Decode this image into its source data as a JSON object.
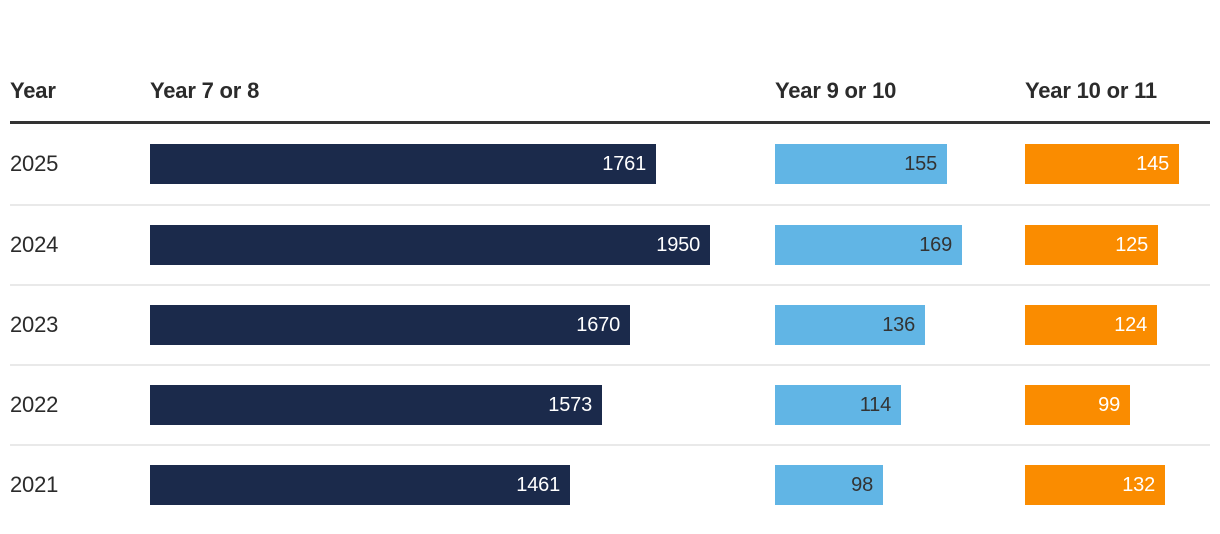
{
  "header": {
    "columns": [
      {
        "label": "Year"
      },
      {
        "label": "Year 7 or 8"
      },
      {
        "label": "Year 9 or 10"
      },
      {
        "label": "Year 10 or 11"
      }
    ]
  },
  "colors": {
    "series_navy": "#1b2a4b",
    "series_blue": "#61b5e5",
    "series_orange": "#fa8c00",
    "label_on_dark": "#ffffff",
    "label_on_light": "#333333",
    "header_rule": "#333333",
    "row_separator": "#e9e9e9",
    "text": "#2b2b2b"
  },
  "chart_data": {
    "type": "bar",
    "variant": "table-with-horizontal-bars",
    "title": "",
    "row_label_column": "Year",
    "categories": [
      "2025",
      "2024",
      "2023",
      "2022",
      "2021"
    ],
    "series": [
      {
        "name": "Year 7 or 8",
        "values": [
          1761,
          1950,
          1670,
          1573,
          1461
        ],
        "max": 1950,
        "color": "#1b2a4b",
        "label_color": "#ffffff"
      },
      {
        "name": "Year 9 or 10",
        "values": [
          155,
          169,
          136,
          114,
          98
        ],
        "max": 169,
        "color": "#61b5e5",
        "label_color": "#333333"
      },
      {
        "name": "Year 10 or 11",
        "values": [
          145,
          125,
          124,
          99,
          132
        ],
        "max": 145,
        "color": "#fa8c00",
        "label_color": "#ffffff"
      }
    ],
    "value_labels": "inside-end",
    "legend": "none",
    "grid": "off",
    "axes": "none"
  }
}
